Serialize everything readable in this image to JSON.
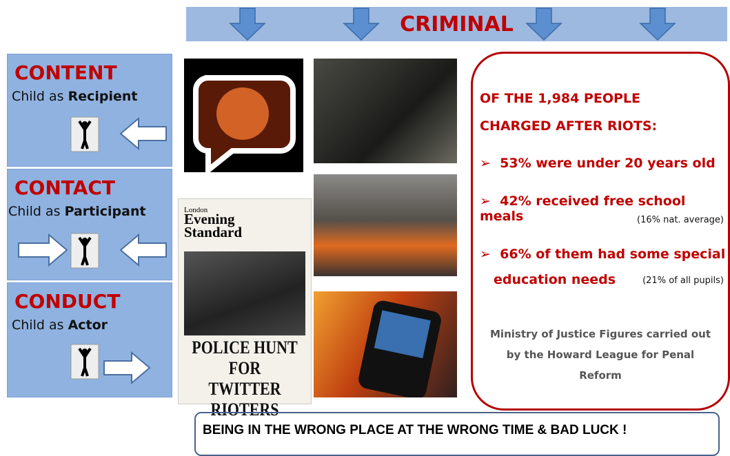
{
  "banner": {
    "title": "CRIMINAL"
  },
  "panels": [
    {
      "heading": "CONTENT",
      "lead": "Child as",
      "role": "Recipient"
    },
    {
      "heading": "CONTACT",
      "lead": "Child as",
      "role": "Participant"
    },
    {
      "heading": "CONDUCT",
      "lead": "Child as",
      "role": "Actor"
    }
  ],
  "newspaper": {
    "city": "London",
    "masthead": [
      "Evening",
      "Standard"
    ],
    "headline": [
      "POLICE HUNT FOR",
      "TWITTER RIOTERS"
    ]
  },
  "stats": {
    "heading": [
      "OF THE 1,984 PEOPLE",
      "CHARGED AFTER RIOTS:"
    ],
    "items": [
      {
        "lines": [
          "53% were under 20 years old"
        ]
      },
      {
        "lines": [
          "42% received free school meals"
        ],
        "note": "(16% nat. average)"
      },
      {
        "lines": [
          "66% of them had some special",
          "education needs"
        ],
        "note": "(21% of all pupils)"
      }
    ],
    "source": [
      "Ministry of Justice Figures carried out",
      "by the  Howard League for Penal",
      "Reform"
    ]
  },
  "footer": {
    "text": "BEING IN THE WRONG PLACE AT THE WRONG TIME & BAD LUCK !"
  }
}
